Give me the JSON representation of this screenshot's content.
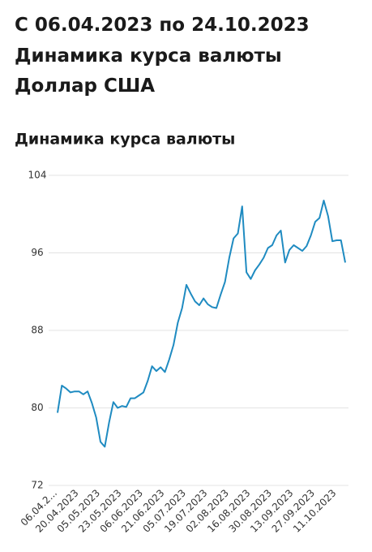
{
  "header": {
    "lines": [
      "С 06.04.2023 по 24.10.2023",
      "Динамика курса валюты",
      "Доллар США"
    ]
  },
  "chart_data": {
    "type": "line",
    "title": "Динамика курса валюты",
    "categories": [
      "06.04.2...",
      null,
      null,
      null,
      null,
      "20.04.2023",
      null,
      null,
      null,
      null,
      "05.05.2023",
      null,
      null,
      null,
      null,
      "23.05.2023",
      null,
      null,
      null,
      null,
      "06.06.2023",
      null,
      null,
      null,
      null,
      "21.06.2023",
      null,
      null,
      null,
      null,
      "05.07.2023",
      null,
      null,
      null,
      null,
      "19.07.2023",
      null,
      null,
      null,
      null,
      "02.08.2023",
      null,
      null,
      null,
      null,
      "16.08.2023",
      null,
      null,
      null,
      null,
      "30.08.2023",
      null,
      null,
      null,
      null,
      "13.09.2023",
      null,
      null,
      null,
      null,
      "27.09.2023",
      null,
      null,
      null,
      null,
      "11.10.2023",
      null,
      null
    ],
    "series": [
      {
        "name": "Доллар США",
        "color": "#1f8bc1",
        "values": [
          79.5,
          82.3,
          82.0,
          81.6,
          81.7,
          81.7,
          81.4,
          81.7,
          80.5,
          79.0,
          76.5,
          76.0,
          78.5,
          80.6,
          80.0,
          80.2,
          80.1,
          81.0,
          81.0,
          81.3,
          81.6,
          82.8,
          84.3,
          83.8,
          84.2,
          83.7,
          85.0,
          86.5,
          88.8,
          90.3,
          92.7,
          91.8,
          91.0,
          90.6,
          91.3,
          90.7,
          90.4,
          90.3,
          91.7,
          93.0,
          95.5,
          97.5,
          98.0,
          100.8,
          94.0,
          93.3,
          94.2,
          94.8,
          95.5,
          96.5,
          96.8,
          97.8,
          98.3,
          95.0,
          96.3,
          96.8,
          96.5,
          96.2,
          96.7,
          97.8,
          99.2,
          99.6,
          101.4,
          99.8,
          97.2,
          97.3,
          97.3,
          95.0
        ]
      }
    ],
    "ylim": [
      72,
      104
    ],
    "yticks": [
      72,
      80,
      88,
      96,
      104
    ],
    "grid": true
  }
}
